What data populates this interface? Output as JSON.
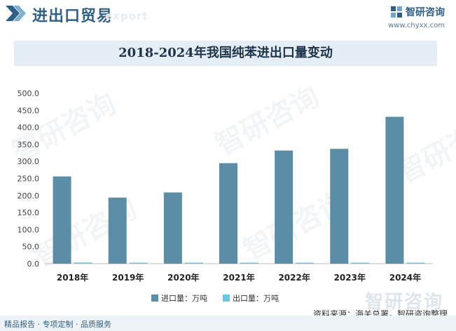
{
  "header": {
    "title": "进出口贸易",
    "ghost": "export"
  },
  "brand": {
    "name": "智研咨询",
    "url": "www.chyxx.com",
    "watermark": "智研咨询"
  },
  "colors": {
    "import": "#5b8ea6",
    "export": "#6fc4e4",
    "title_bg": "#e5eef6",
    "accent": "#2f5f86"
  },
  "chart_data": {
    "type": "bar",
    "title": "2018-2024年我国纯苯进出口量变动",
    "categories": [
      "2018年",
      "2019年",
      "2020年",
      "2021年",
      "2022年",
      "2023年",
      "2024年"
    ],
    "series": [
      {
        "name": "进口量：万吨",
        "values": [
          256,
          194,
          209,
          295,
          332,
          337,
          431
        ]
      },
      {
        "name": "出口量：万吨",
        "values": [
          3.5,
          1.2,
          1.0,
          1.8,
          1.3,
          1.5,
          0.9
        ]
      }
    ],
    "yticks": [
      "0.0",
      "50.0",
      "100.0",
      "150.0",
      "200.0",
      "250.0",
      "300.0",
      "350.0",
      "400.0",
      "450.0",
      "500.0"
    ],
    "ylim": [
      0,
      500
    ],
    "xlabel": "",
    "ylabel": ""
  },
  "source": "资料来源：海关总署，智研咨询整理",
  "footer": {
    "text": "精品报告 · 专项定制 · 品质服务"
  }
}
